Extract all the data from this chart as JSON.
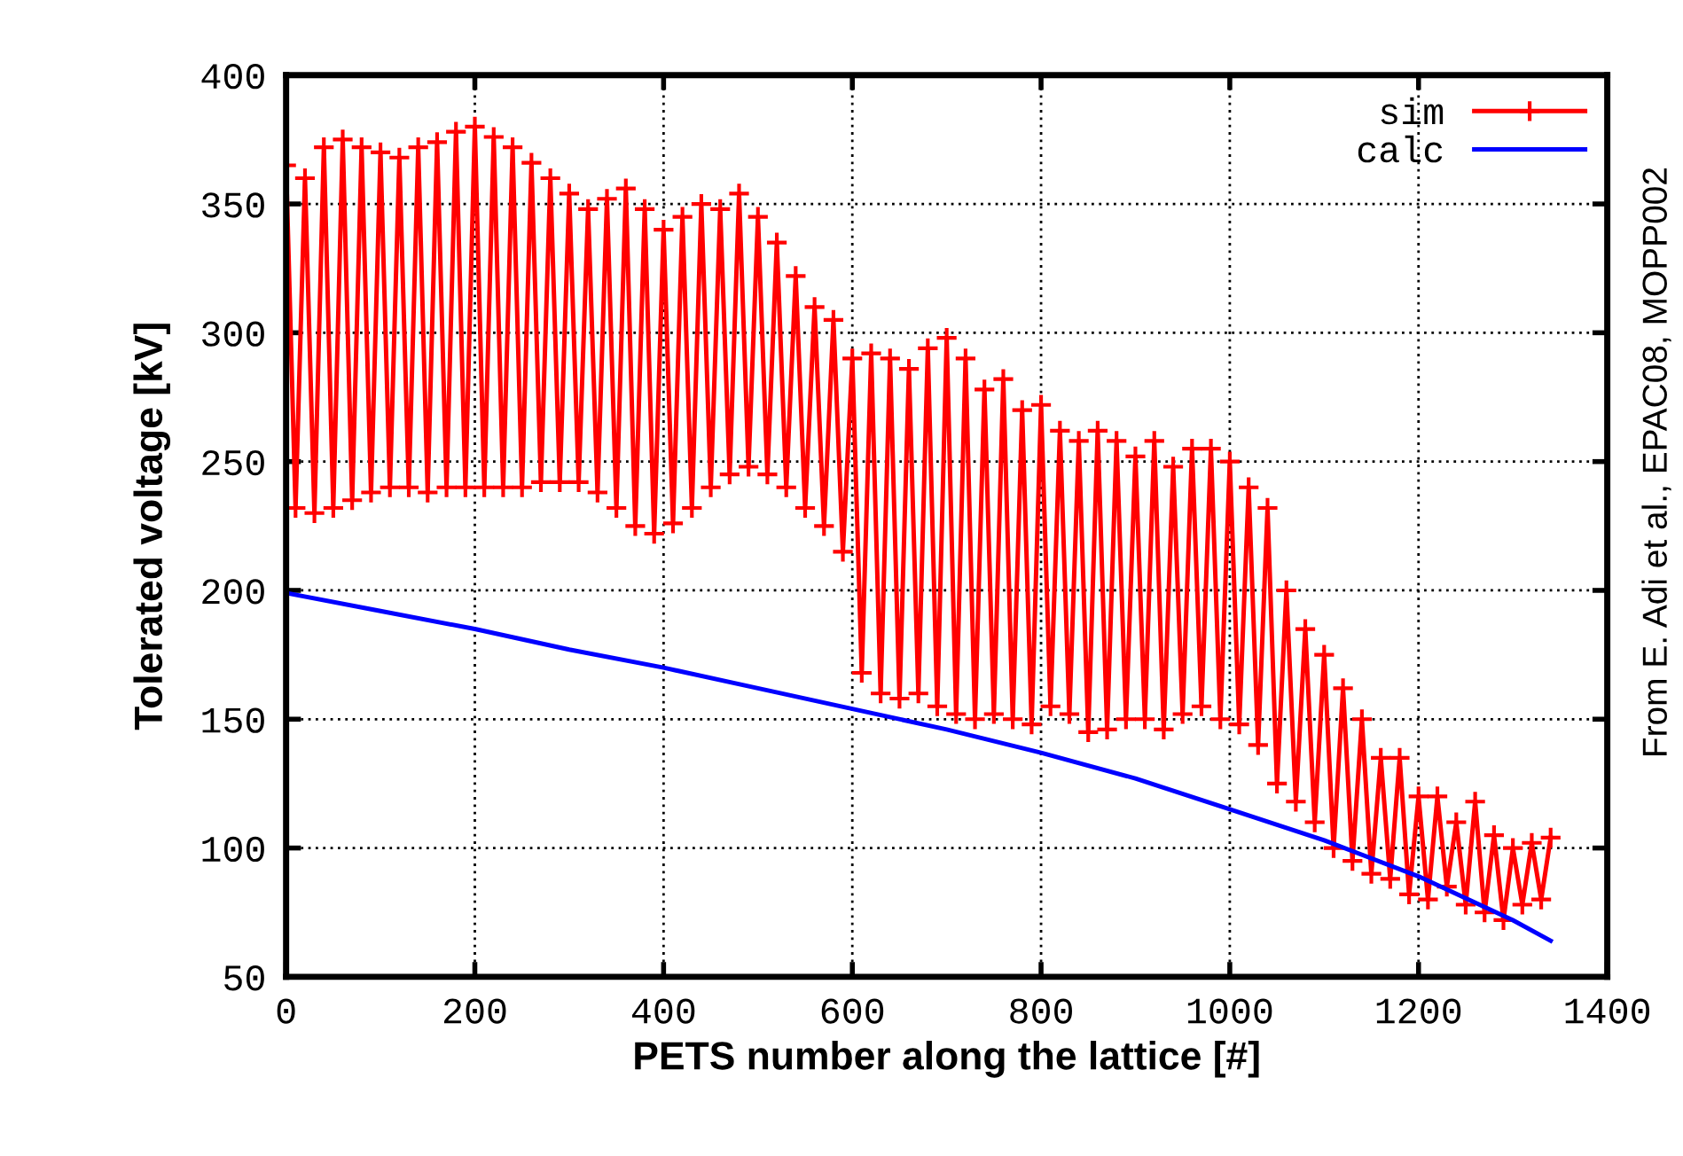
{
  "chart_data": {
    "type": "line",
    "xlabel": "PETS number along the lattice [#]",
    "ylabel": "Tolerated voltage [kV]",
    "annotations": [
      "From E. Adi et al., EPAC08, MOPP002"
    ],
    "xlim": [
      0,
      1400
    ],
    "ylim": [
      50,
      400
    ],
    "xticks": [
      0,
      200,
      400,
      600,
      800,
      1000,
      1200,
      1400
    ],
    "yticks": [
      50,
      100,
      150,
      200,
      250,
      300,
      350,
      400
    ],
    "grid": true,
    "legend": "top right",
    "series": [
      {
        "name": "sim",
        "color": "#ff0000",
        "marker": "cross",
        "x": [
          0,
          10,
          20,
          30,
          40,
          50,
          60,
          70,
          80,
          90,
          100,
          110,
          120,
          130,
          140,
          150,
          160,
          170,
          180,
          190,
          200,
          210,
          220,
          230,
          240,
          250,
          260,
          270,
          280,
          290,
          300,
          310,
          320,
          330,
          340,
          350,
          360,
          370,
          380,
          390,
          400,
          410,
          420,
          430,
          440,
          450,
          460,
          470,
          480,
          490,
          500,
          510,
          520,
          530,
          540,
          550,
          560,
          570,
          580,
          590,
          600,
          610,
          620,
          630,
          640,
          650,
          660,
          670,
          680,
          690,
          700,
          710,
          720,
          730,
          740,
          750,
          760,
          770,
          780,
          790,
          800,
          810,
          820,
          830,
          840,
          850,
          860,
          870,
          880,
          890,
          900,
          910,
          920,
          930,
          940,
          950,
          960,
          970,
          980,
          990,
          1000,
          1010,
          1020,
          1030,
          1040,
          1050,
          1060,
          1070,
          1080,
          1090,
          1100,
          1110,
          1120,
          1130,
          1140,
          1150,
          1160,
          1170,
          1180,
          1190,
          1200,
          1210,
          1220,
          1230,
          1240,
          1250,
          1260,
          1270,
          1280,
          1290,
          1300,
          1310,
          1320,
          1330,
          1340
        ],
        "values": [
          365,
          232,
          360,
          230,
          372,
          232,
          375,
          235,
          372,
          238,
          370,
          240,
          368,
          240,
          372,
          238,
          374,
          240,
          378,
          240,
          380,
          240,
          376,
          240,
          372,
          240,
          366,
          242,
          360,
          242,
          354,
          242,
          348,
          238,
          352,
          232,
          356,
          225,
          348,
          222,
          340,
          226,
          345,
          232,
          350,
          240,
          348,
          245,
          354,
          248,
          345,
          245,
          335,
          240,
          322,
          232,
          310,
          225,
          305,
          215,
          290,
          168,
          292,
          160,
          290,
          158,
          286,
          160,
          294,
          155,
          298,
          152,
          290,
          150,
          278,
          152,
          282,
          150,
          270,
          148,
          272,
          155,
          262,
          152,
          258,
          145,
          262,
          146,
          258,
          150,
          252,
          150,
          258,
          146,
          248,
          152,
          255,
          155,
          255,
          150,
          250,
          148,
          240,
          140,
          232,
          125,
          200,
          118,
          185,
          110,
          175,
          100,
          162,
          95,
          150,
          90,
          135,
          88,
          135,
          82,
          120,
          80,
          120,
          85,
          110,
          78,
          118,
          75,
          105,
          72,
          100,
          78,
          102,
          80,
          104
        ]
      },
      {
        "name": "calc",
        "color": "#0000ff",
        "marker": "none",
        "x": [
          0,
          100,
          200,
          300,
          400,
          500,
          600,
          700,
          800,
          900,
          1000,
          1100,
          1200,
          1300,
          1340
        ],
        "values": [
          199,
          192,
          185,
          177,
          170,
          162,
          154,
          146,
          137,
          127,
          115,
          103,
          89,
          72,
          64
        ]
      }
    ]
  }
}
